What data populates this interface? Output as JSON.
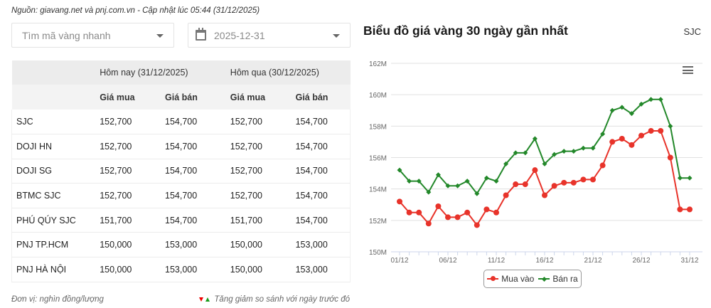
{
  "source_note": "Nguồn: giavang.net và pnj.com.vn - Cập nhật lúc 05:44 (31/12/2025)",
  "filters": {
    "code_select": {
      "placeholder": "Tìm mã vàng nhanh"
    },
    "date_select": {
      "value": "2025-12-31"
    }
  },
  "table": {
    "group_headers": [
      "",
      "Hôm nay (31/12/2025)",
      "Hôm qua (30/12/2025)"
    ],
    "sub_headers": [
      "",
      "Giá mua",
      "Giá bán",
      "Giá mua",
      "Giá bán"
    ],
    "rows": [
      [
        "SJC",
        "152,700",
        "154,700",
        "152,700",
        "154,700"
      ],
      [
        "DOJI HN",
        "152,700",
        "154,700",
        "152,700",
        "154,700"
      ],
      [
        "DOJI SG",
        "152,700",
        "154,700",
        "152,700",
        "154,700"
      ],
      [
        "BTMC SJC",
        "152,700",
        "154,700",
        "152,700",
        "154,700"
      ],
      [
        "PHÚ QÚY SJC",
        "151,700",
        "154,700",
        "151,700",
        "154,700"
      ],
      [
        "PNJ TP.HCM",
        "150,000",
        "153,000",
        "150,000",
        "153,000"
      ],
      [
        "PNJ HÀ NỘI",
        "150,000",
        "153,000",
        "150,000",
        "153,000"
      ]
    ]
  },
  "footer": {
    "unit": "Đơn vị: nghìn đồng/lượng",
    "compare_note": "Tăng giảm so sánh với ngày trước đó"
  },
  "chart_panel": {
    "title": "Biểu đồ giá vàng 30 ngày gần nhất",
    "code": "SJC"
  },
  "colors": {
    "buy": "#e8332a",
    "sell": "#23882a",
    "grid": "#e0e0e0",
    "axis_text": "#666666"
  },
  "chart_data": {
    "type": "line",
    "title": "Biểu đồ giá vàng 30 ngày gần nhất",
    "xlabel": "",
    "ylabel": "",
    "ylim": [
      150,
      162
    ],
    "y_unit": "M",
    "y_ticks": [
      "150M",
      "152M",
      "154M",
      "156M",
      "158M",
      "160M",
      "162M"
    ],
    "x_tick_labels": [
      "01/12",
      "06/12",
      "11/12",
      "16/12",
      "21/12",
      "26/12",
      "31/12"
    ],
    "grid": true,
    "legend_position": "bottom",
    "x": [
      "01/12",
      "02/12",
      "03/12",
      "04/12",
      "05/12",
      "06/12",
      "07/12",
      "08/12",
      "09/12",
      "10/12",
      "11/12",
      "12/12",
      "13/12",
      "14/12",
      "15/12",
      "16/12",
      "17/12",
      "18/12",
      "19/12",
      "20/12",
      "21/12",
      "22/12",
      "23/12",
      "24/12",
      "25/12",
      "26/12",
      "27/12",
      "28/12",
      "29/12",
      "30/12",
      "31/12"
    ],
    "series": [
      {
        "name": "Mua vào",
        "color": "#e8332a",
        "marker": "circle",
        "values": [
          153.2,
          152.5,
          152.5,
          151.8,
          152.9,
          152.2,
          152.2,
          152.5,
          151.7,
          152.7,
          152.5,
          153.6,
          154.3,
          154.3,
          155.2,
          153.6,
          154.2,
          154.4,
          154.4,
          154.6,
          154.6,
          155.5,
          157.0,
          157.2,
          156.8,
          157.4,
          157.7,
          157.7,
          156.0,
          152.7,
          152.7
        ]
      },
      {
        "name": "Bán ra",
        "color": "#23882a",
        "marker": "diamond",
        "values": [
          155.2,
          154.5,
          154.5,
          153.8,
          154.9,
          154.2,
          154.2,
          154.5,
          153.7,
          154.7,
          154.5,
          155.6,
          156.3,
          156.3,
          157.2,
          155.6,
          156.2,
          156.4,
          156.4,
          156.6,
          156.6,
          157.5,
          159.0,
          159.2,
          158.8,
          159.4,
          159.7,
          159.7,
          158.0,
          154.7,
          154.7
        ]
      }
    ]
  }
}
